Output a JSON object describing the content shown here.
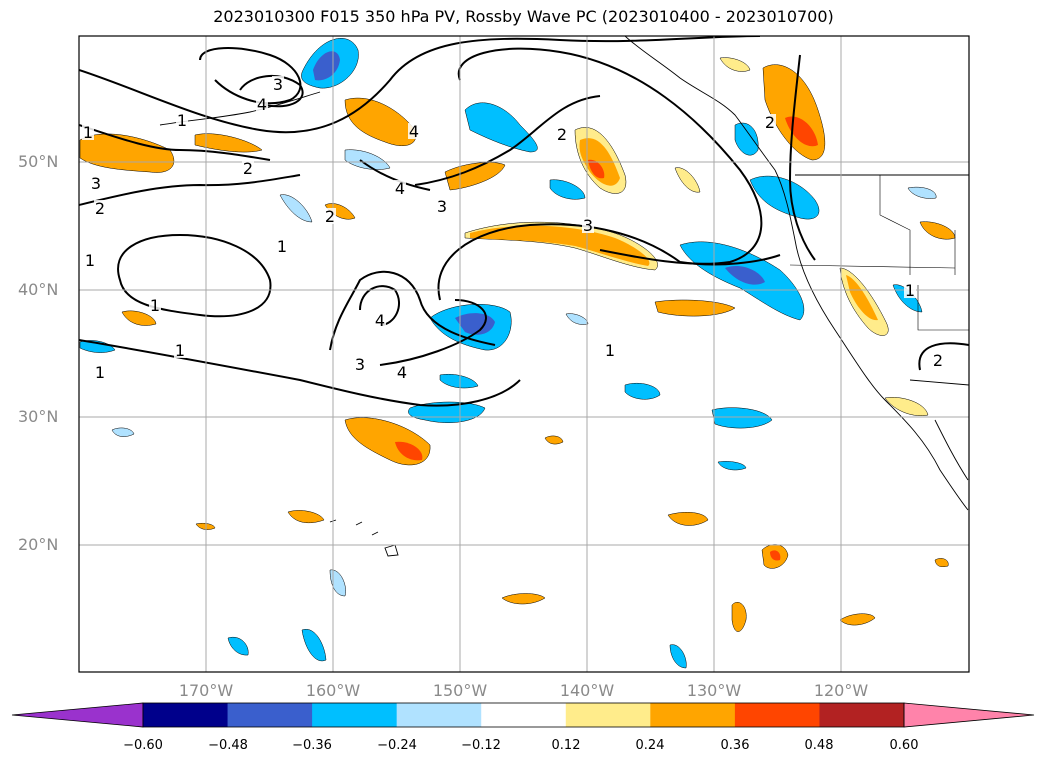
{
  "title": "2023010300 F015 350 hPa PV, Rossby Wave PC (2023010400 - 2023010700)",
  "map": {
    "lat_labels": [
      "50°N",
      "40°N",
      "30°N",
      "20°N"
    ],
    "lon_labels": [
      "170°W",
      "160°W",
      "150°W",
      "140°W",
      "130°W",
      "120°W"
    ],
    "contour_labels": [
      "1",
      "1",
      "1",
      "1",
      "1",
      "1",
      "1",
      "1",
      "1",
      "2",
      "2",
      "2",
      "2",
      "2",
      "2",
      "3",
      "3",
      "3",
      "3",
      "3",
      "4",
      "4",
      "4",
      "4",
      "4"
    ]
  },
  "colorbar": {
    "ticks": [
      "−0.60",
      "−0.48",
      "−0.36",
      "−0.24",
      "−0.12",
      "0.12",
      "0.24",
      "0.36",
      "0.48",
      "0.60"
    ],
    "colors": [
      "#9a32cd",
      "#00008b",
      "#3a5fcd",
      "#00bfff",
      "#b0e2ff",
      "#ffffff",
      "#ffec8b",
      "#ffa500",
      "#ff4500",
      "#b22222",
      "#ff83aa"
    ]
  }
}
